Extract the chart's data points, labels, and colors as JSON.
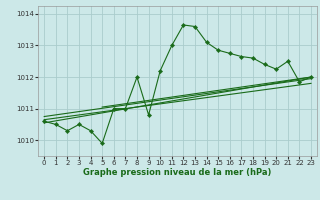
{
  "title": "Graphe pression niveau de la mer (hPa)",
  "bg_color": "#cce8e8",
  "grid_color": "#aacccc",
  "line_color": "#1a6b1a",
  "xlim": [
    -0.5,
    23.5
  ],
  "ylim": [
    1009.5,
    1014.25
  ],
  "yticks": [
    1010,
    1011,
    1012,
    1013,
    1014
  ],
  "xticks": [
    0,
    1,
    2,
    3,
    4,
    5,
    6,
    7,
    8,
    9,
    10,
    11,
    12,
    13,
    14,
    15,
    16,
    17,
    18,
    19,
    20,
    21,
    22,
    23
  ],
  "series1_x": [
    0,
    1,
    2,
    3,
    4,
    5,
    6,
    7,
    8,
    9,
    10,
    11,
    12,
    13,
    14,
    15,
    16,
    17,
    18,
    19,
    20,
    21,
    22,
    23
  ],
  "series1_y": [
    1010.6,
    1010.5,
    1010.3,
    1010.5,
    1010.3,
    1009.9,
    1011.0,
    1011.0,
    1012.0,
    1010.8,
    1012.2,
    1013.0,
    1013.65,
    1013.6,
    1013.1,
    1012.85,
    1012.75,
    1012.65,
    1012.6,
    1012.4,
    1012.25,
    1012.5,
    1011.85,
    1012.0
  ],
  "trend_lines": [
    {
      "x": [
        0,
        23
      ],
      "y": [
        1010.55,
        1012.0
      ]
    },
    {
      "x": [
        0,
        23
      ],
      "y": [
        1010.65,
        1011.8
      ]
    },
    {
      "x": [
        0,
        23
      ],
      "y": [
        1010.75,
        1011.95
      ]
    },
    {
      "x": [
        5,
        23
      ],
      "y": [
        1011.05,
        1012.0
      ]
    }
  ]
}
